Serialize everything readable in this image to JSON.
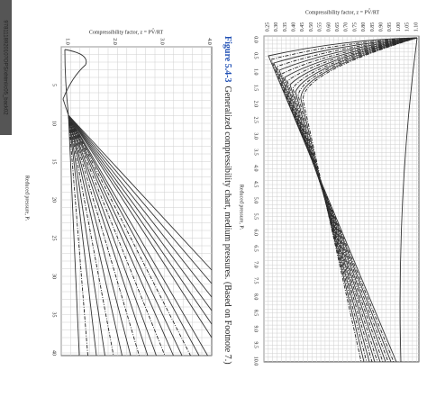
{
  "sidebar_label": "9781118920107OPS/xhtml/c05_back02",
  "figure": {
    "label": "Figure 5.4-3",
    "caption": "Generalized compressibility chart, medium pressures. (Based on Footnote 7.)"
  },
  "left_chart": {
    "z_axis_label": "Compressibility factor, z = PV̂/RT",
    "pr_axis_label": "Reduced pressure, Pᵣ",
    "z_ticks": [
      "1.0",
      "2.0",
      "3.0",
      "4.0"
    ],
    "pr_ticks": [
      "5",
      "10",
      "15",
      "20",
      "25",
      "30",
      "35",
      "40"
    ]
  },
  "right_chart": {
    "z_axis_label": "Compressibility factor, z = PV̂/RT",
    "pr_axis_label": "Reduced pressure, Pᵣ",
    "z_ticks": [
      "0.25",
      "0.30",
      "0.35",
      "0.40",
      "0.45",
      "0.50",
      "0.55",
      "0.60",
      "0.65",
      "0.70",
      "0.75",
      "0.80",
      "0.85",
      "0.90",
      "0.95",
      "1.00",
      "1.05",
      "1.10"
    ],
    "pr_ticks": [
      "0.0",
      "0.5",
      "1.0",
      "1.5",
      "2.0",
      "2.5",
      "3.0",
      "3.5",
      "4.0",
      "4.5",
      "5.0",
      "5.5",
      "6.0",
      "6.5",
      "7.0",
      "7.5",
      "8.0",
      "8.5",
      "9.0",
      "9.5",
      "10.0"
    ]
  }
}
